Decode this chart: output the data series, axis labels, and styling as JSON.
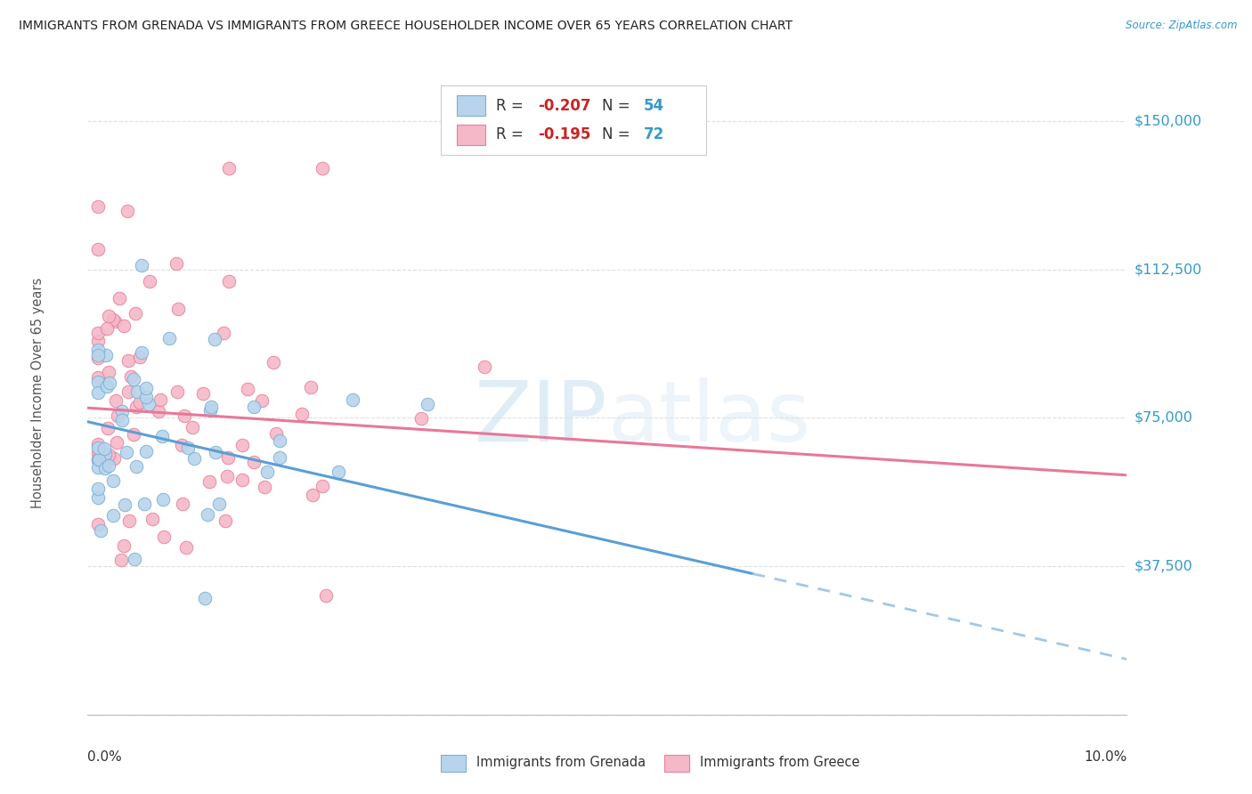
{
  "title": "IMMIGRANTS FROM GRENADA VS IMMIGRANTS FROM GREECE HOUSEHOLDER INCOME OVER 65 YEARS CORRELATION CHART",
  "source": "Source: ZipAtlas.com",
  "ylabel": "Householder Income Over 65 years",
  "xlim": [
    0.0,
    0.1
  ],
  "ylim": [
    0,
    162500
  ],
  "yticks": [
    0,
    37500,
    75000,
    112500,
    150000
  ],
  "ytick_labels": [
    "",
    "$37,500",
    "$75,000",
    "$112,500",
    "$150,000"
  ],
  "background_color": "#ffffff",
  "grenada_fill": "#b8d4ec",
  "grenada_edge": "#7ab0d4",
  "greece_fill": "#f5b8c8",
  "greece_edge": "#e8809a",
  "grenada_line_color": "#5b9fd4",
  "grenada_dash_color": "#a0c8e8",
  "greece_line_color": "#e87898",
  "R_grenada": -0.207,
  "N_grenada": 54,
  "R_greece": -0.195,
  "N_greece": 72,
  "legend_R_color": "#cc2222",
  "legend_N_color": "#3399cc",
  "watermark_color": "#ddeef8",
  "right_label_color": "#3399cc",
  "title_color": "#222222",
  "source_color": "#3399cc",
  "ylabel_color": "#555555",
  "grid_color": "#e0e0e0",
  "bottom_label_color": "#333333"
}
